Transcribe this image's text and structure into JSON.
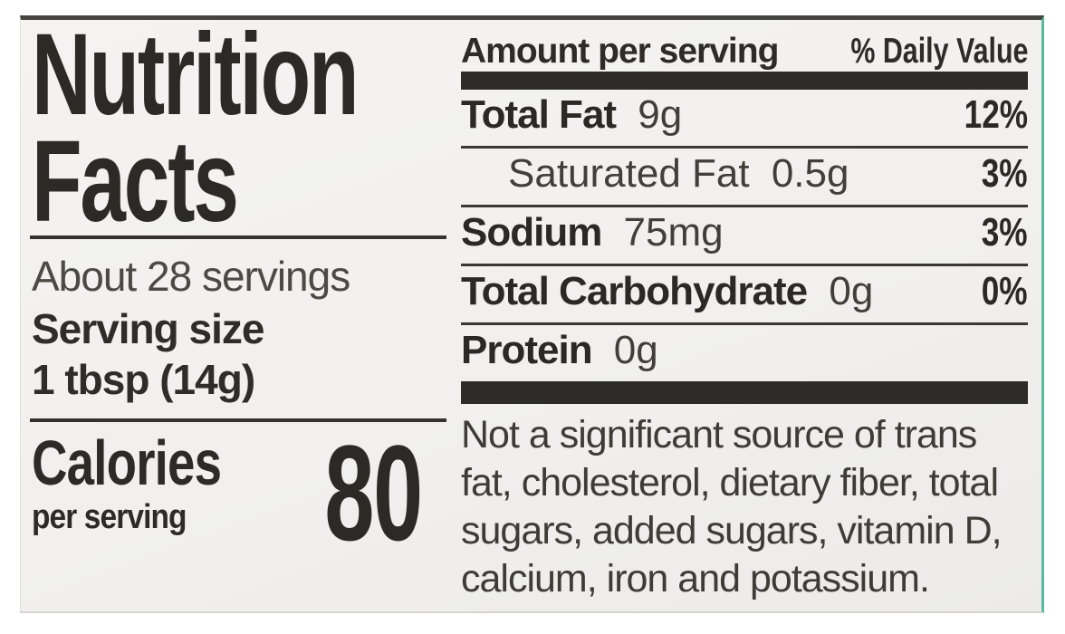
{
  "label": {
    "title_line1": "Nutrition",
    "title_line2": "Facts",
    "servings_per_container": "About 28 servings",
    "serving_size_label": "Serving size",
    "serving_size_value": "1 tbsp (14g)",
    "calories_label": "Calories",
    "calories_sublabel": "per serving",
    "calories_value": "80",
    "header": {
      "amount_label": "Amount per serving",
      "daily_value_label": "% Daily Value"
    },
    "rows": [
      {
        "name": "Total Fat",
        "amount": "9g",
        "daily_value": "12%"
      },
      {
        "name": "Saturated Fat",
        "amount": "0.5g",
        "daily_value": "3%"
      },
      {
        "name": "Sodium",
        "amount": "75mg",
        "daily_value": "3%"
      },
      {
        "name": "Total Carbohydrate",
        "amount": "0g",
        "daily_value": "0%"
      },
      {
        "name": "Protein",
        "amount": "0g",
        "daily_value": ""
      }
    ],
    "footnote_lines": [
      "Not a significant source of trans",
      "fat, cholesterol, dietary fiber, total",
      "sugars, added sugars, vitamin D,",
      "calcium, iron and potassium."
    ],
    "colors": {
      "ink": "#2b2a27",
      "label_background": "#f1f0ee",
      "page_background": "#ffffff",
      "right_edge_teal": "#5cb8a2"
    }
  }
}
